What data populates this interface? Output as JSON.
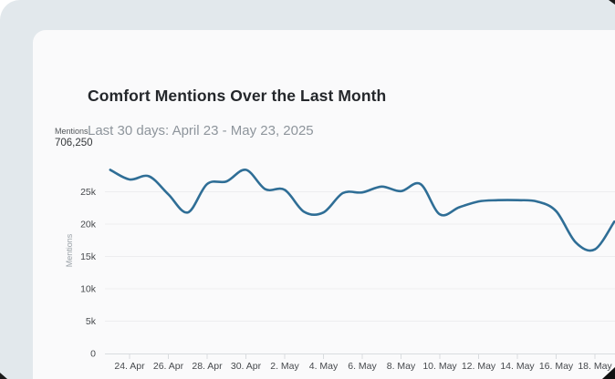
{
  "card": {
    "title": "Comfort Mentions Over the Last Month",
    "subtitle": "Last 30 days: April 23 - May 23, 2025"
  },
  "stat": {
    "label": "Mentions",
    "value": "706,250"
  },
  "chart_data": {
    "type": "line",
    "title": "Comfort Mentions Over the Last Month",
    "xlabel": "",
    "ylabel": "Mentions",
    "legend": "none",
    "grid": true,
    "ylim": [
      0,
      30000
    ],
    "x": [
      "Apr 23",
      "Apr 24",
      "Apr 25",
      "Apr 26",
      "Apr 27",
      "Apr 28",
      "Apr 29",
      "Apr 30",
      "May 1",
      "May 2",
      "May 3",
      "May 4",
      "May 5",
      "May 6",
      "May 7",
      "May 8",
      "May 9",
      "May 10",
      "May 11",
      "May 12",
      "May 13",
      "May 14",
      "May 15",
      "May 16",
      "May 17",
      "May 18",
      "May 19"
    ],
    "values": [
      28400,
      26900,
      27400,
      24600,
      21800,
      26200,
      26600,
      28400,
      25400,
      25300,
      21900,
      21800,
      24800,
      24900,
      25800,
      25100,
      26200,
      21500,
      22600,
      23500,
      23700,
      23700,
      23500,
      22000,
      17200,
      16100,
      20400
    ],
    "x_tick_labels": [
      "24. Apr",
      "26. Apr",
      "28. Apr",
      "30. Apr",
      "2. May",
      "4. May",
      "6. May",
      "8. May",
      "10. May",
      "12. May",
      "14. May",
      "16. May",
      "18. May"
    ],
    "x_tick_indices": [
      1,
      3,
      5,
      7,
      9,
      11,
      13,
      15,
      17,
      19,
      21,
      23,
      25
    ],
    "y_ticks": [
      {
        "label": "0",
        "value": 0
      },
      {
        "label": "5k",
        "value": 5000
      },
      {
        "label": "10k",
        "value": 10000
      },
      {
        "label": "15k",
        "value": 15000
      },
      {
        "label": "20k",
        "value": 20000
      },
      {
        "label": "25k",
        "value": 25000
      }
    ],
    "line_color": "#2f6e96",
    "grid_color": "#ededef",
    "axis_color": "#d9dcdf",
    "tick_label_color": "#46494d"
  },
  "colors": {
    "page_background": "#e2e8ec",
    "card_background": "#fafafb",
    "title_text": "#24272b",
    "subtitle_text": "#8e959c"
  }
}
